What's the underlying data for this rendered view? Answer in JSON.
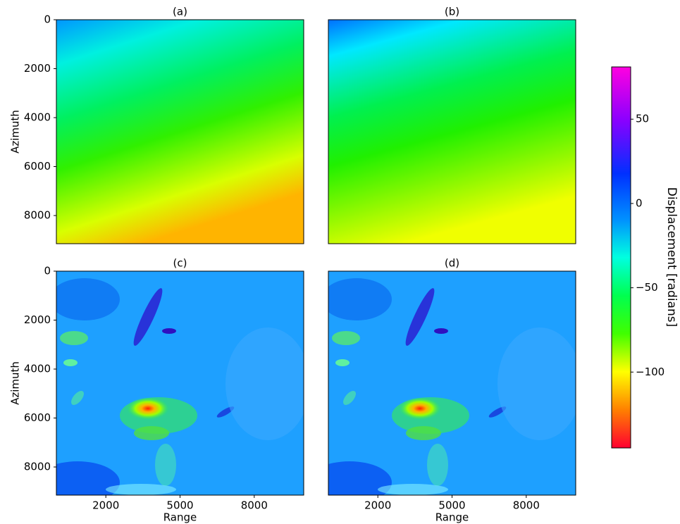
{
  "chart_data": [
    {
      "type": "image",
      "title": "(a)",
      "ylabel": "Azimuth",
      "xlim": [
        0,
        10000
      ],
      "ylim": [
        9150,
        0
      ],
      "yticks": [
        0,
        2000,
        4000,
        6000,
        8000
      ]
    },
    {
      "type": "image",
      "title": "(b)",
      "xlim": [
        0,
        10000
      ],
      "ylim": [
        9150,
        0
      ]
    },
    {
      "type": "image",
      "title": "(c)",
      "xlabel": "Range",
      "ylabel": "Azimuth",
      "xlim": [
        0,
        10000
      ],
      "ylim": [
        9150,
        0
      ],
      "xticks": [
        2000,
        5000,
        8000
      ],
      "yticks": [
        0,
        2000,
        4000,
        6000,
        8000
      ]
    },
    {
      "type": "image",
      "title": "(d)",
      "xlabel": "Range",
      "xlim": [
        0,
        10000
      ],
      "ylim": [
        9150,
        0
      ],
      "xticks": [
        2000,
        5000,
        8000
      ]
    }
  ],
  "colorbar": {
    "label": "Displacement [radians]",
    "lim": [
      -145,
      81
    ],
    "ticks": [
      50,
      0,
      {
        "value": -50,
        "label": "−50"
      },
      {
        "value": -100,
        "label": "−100"
      }
    ]
  }
}
